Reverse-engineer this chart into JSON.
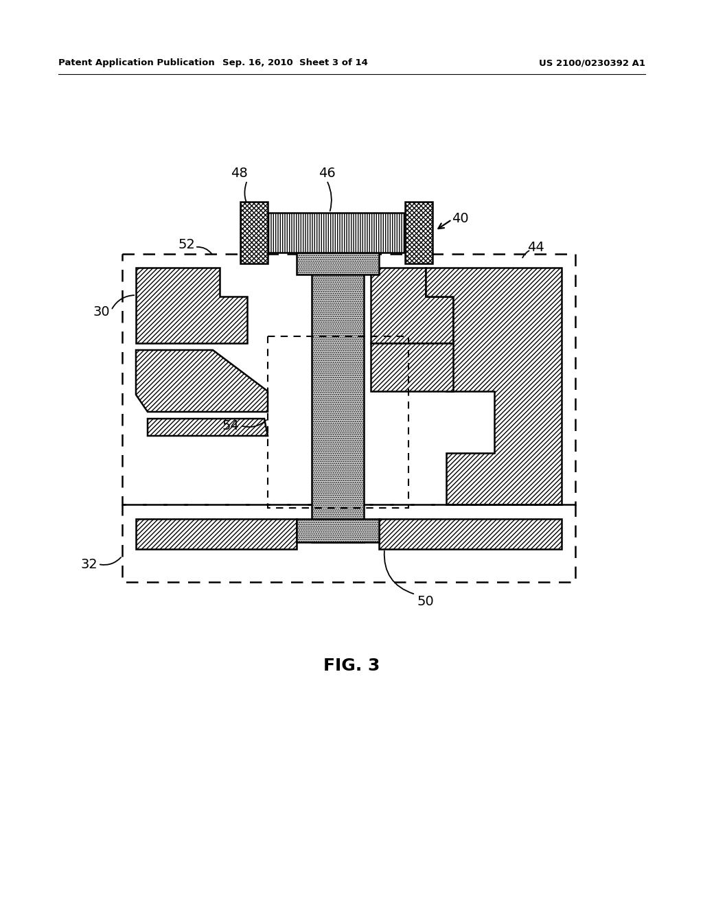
{
  "header_left": "Patent Application Publication",
  "header_mid": "Sep. 16, 2010  Sheet 3 of 14",
  "header_right": "US 2100/0230392 A1",
  "fig_label": "FIG. 3",
  "bg_color": "#ffffff"
}
